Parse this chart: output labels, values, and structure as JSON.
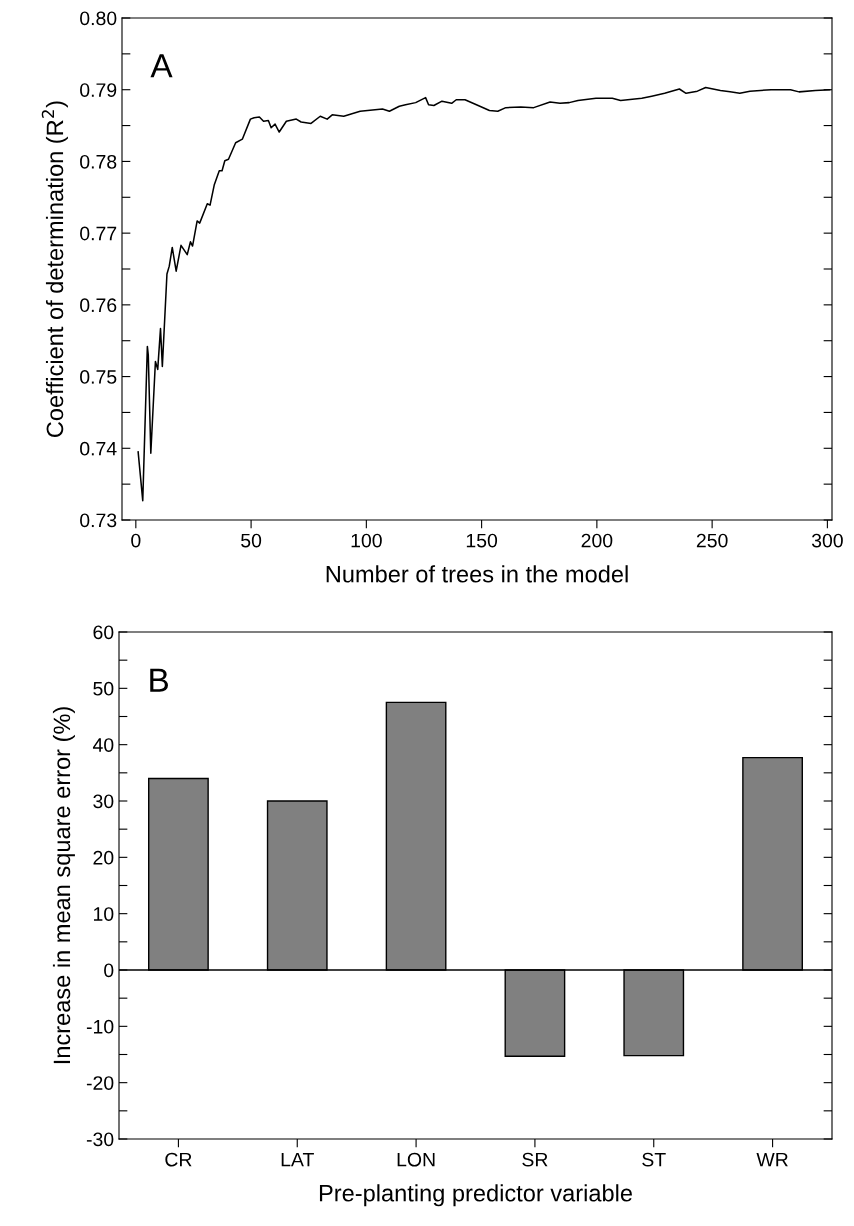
{
  "chart_data": [
    {
      "type": "line",
      "xlabel": "Number of trees in the model",
      "ylabel": "Coefficient of determination (R$^{2}$)",
      "annotations": [
        "A"
      ],
      "series": [
        {
          "color": "#000000",
          "x": [
            1,
            3,
            5,
            5.4,
            6.5,
            8.5,
            9.5,
            10.7,
            11.5,
            13.5,
            14.5,
            15.8,
            17.5,
            19.6,
            22.3,
            23.7,
            24.6,
            26.6,
            27.7,
            31,
            32.2,
            34,
            36.2,
            37.4,
            38.6,
            40.2,
            43.3,
            46.2,
            49.7,
            51.3,
            53.6,
            55.4,
            57.5,
            58.7,
            60.4,
            62.2,
            65.3,
            69.6,
            71.7,
            76,
            80,
            83,
            85.2,
            90.2,
            97.3,
            107,
            110,
            114.3,
            117,
            121.4,
            125.7,
            127,
            129.3,
            132.8,
            137,
            139,
            142.8,
            148.5,
            153.4,
            157,
            160.5,
            167,
            172.6,
            179.7,
            184,
            188,
            191.8,
            199.6,
            206.7,
            210.3,
            219.5,
            223.8,
            229.4,
            235.8,
            238.7,
            243.6,
            247.2,
            253.6,
            257.8,
            262,
            266.4,
            275.6,
            284,
            287.7,
            294.8,
            301
          ],
          "values": [
            0.7395,
            0.7327,
            0.7542,
            0.753,
            0.7393,
            0.7521,
            0.751,
            0.7567,
            0.7514,
            0.7643,
            0.7654,
            0.768,
            0.7647,
            0.7683,
            0.767,
            0.7688,
            0.7682,
            0.7717,
            0.7714,
            0.7741,
            0.7739,
            0.7767,
            0.7787,
            0.7787,
            0.7801,
            0.7803,
            0.7826,
            0.7831,
            0.7859,
            0.7861,
            0.7862,
            0.7856,
            0.7857,
            0.7847,
            0.7852,
            0.7841,
            0.7856,
            0.7859,
            0.7855,
            0.7853,
            0.7863,
            0.7859,
            0.7865,
            0.7863,
            0.787,
            0.7873,
            0.787,
            0.7877,
            0.7879,
            0.7882,
            0.7889,
            0.7879,
            0.7878,
            0.7884,
            0.7881,
            0.7886,
            0.7886,
            0.7878,
            0.7871,
            0.787,
            0.7875,
            0.7876,
            0.7875,
            0.7883,
            0.7881,
            0.7882,
            0.7885,
            0.7888,
            0.7888,
            0.7885,
            0.7888,
            0.7891,
            0.7895,
            0.7901,
            0.7895,
            0.7898,
            0.7903,
            0.7899,
            0.7897,
            0.7895,
            0.7898,
            0.79,
            0.79,
            0.7897,
            0.7899,
            0.79
          ]
        }
      ],
      "xlim": [
        -6,
        302
      ],
      "xticks": [
        0,
        50,
        100,
        150,
        200,
        250,
        300
      ],
      "ylim": [
        0.73,
        0.8
      ],
      "yticks": [
        {
          "value": 0.73,
          "label": "0.73"
        },
        {
          "value": 0.735,
          "label": null
        },
        {
          "value": 0.74,
          "label": "0.74"
        },
        {
          "value": 0.745,
          "label": null
        },
        {
          "value": 0.75,
          "label": "0.75"
        },
        {
          "value": 0.755,
          "label": null
        },
        {
          "value": 0.76,
          "label": "0.76"
        },
        {
          "value": 0.765,
          "label": null
        },
        {
          "value": 0.77,
          "label": "0.77"
        },
        {
          "value": 0.775,
          "label": null
        },
        {
          "value": 0.78,
          "label": "0.78"
        },
        {
          "value": 0.785,
          "label": null
        },
        {
          "value": 0.79,
          "label": "0.79"
        },
        {
          "value": 0.795,
          "label": null
        },
        {
          "value": 0.8,
          "label": "0.80"
        }
      ],
      "grid": false,
      "legend": false,
      "marker": "none",
      "line_style": "solid"
    },
    {
      "type": "bar",
      "xlabel": "Pre-planting predictor variable",
      "ylabel": "Increase in mean square error (%)",
      "annotations": [
        "B"
      ],
      "categories": [
        "CR",
        "LAT",
        "LON",
        "SR",
        "ST",
        "WR"
      ],
      "values": [
        34,
        30,
        47.5,
        -15.3,
        -15.2,
        37.7
      ],
      "color": "#808080",
      "ylim": [
        -30,
        60
      ],
      "yticks": [
        -30,
        {
          "value": -25,
          "label": null
        },
        -20,
        {
          "value": -15,
          "label": null
        },
        -10,
        {
          "value": -5,
          "label": null
        },
        0,
        {
          "value": 5,
          "label": null
        },
        10,
        {
          "value": 15,
          "label": null
        },
        20,
        {
          "value": 25,
          "label": null
        },
        30,
        {
          "value": 35,
          "label": null
        },
        40,
        {
          "value": 45,
          "label": null
        },
        50,
        {
          "value": 55,
          "label": null
        },
        60
      ],
      "ref_lines": [
        {
          "axis": "y",
          "value": 0,
          "color": "#000000"
        }
      ],
      "grid": false,
      "legend": false
    }
  ]
}
